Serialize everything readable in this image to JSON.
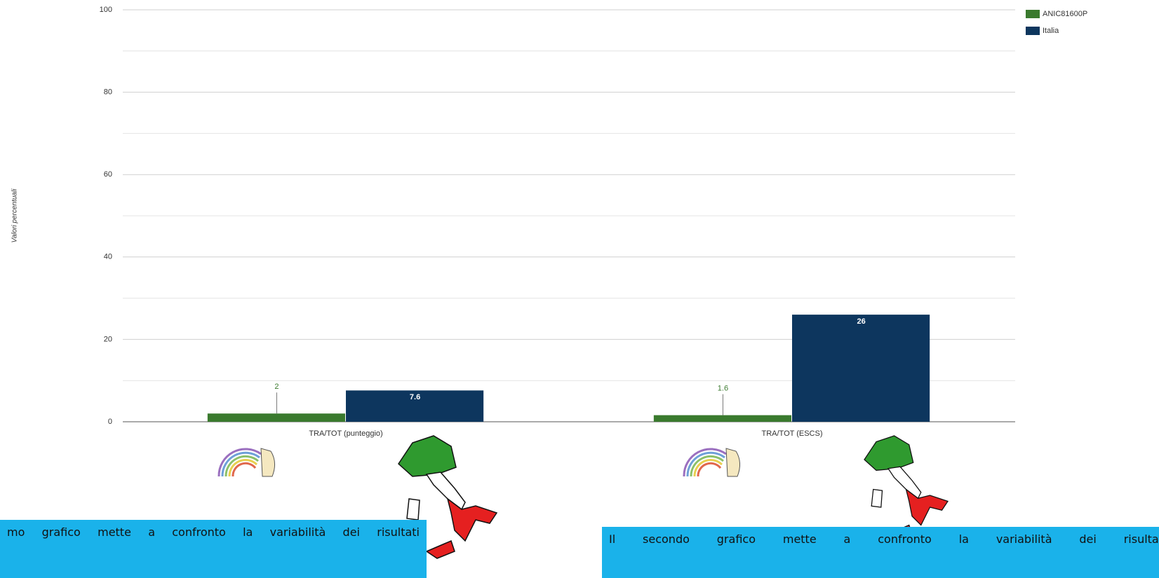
{
  "chart_data": {
    "type": "bar",
    "y_label": "Valori percentuali",
    "categories": [
      "TRA/TOT (punteggio)",
      "TRA/TOT (ESCS)"
    ],
    "series": [
      {
        "name": "ANIC81600P",
        "color": "#3a7a2e",
        "values": [
          2,
          1.6
        ]
      },
      {
        "name": "Italia",
        "color": "#0d365e",
        "values": [
          7.6,
          26
        ]
      }
    ],
    "ylim": [
      0,
      100
    ],
    "yticks": [
      0,
      20,
      40,
      60,
      80,
      100
    ],
    "grid": true,
    "legend": "top-right"
  },
  "text_boxes": {
    "left": "mo grafico mette a confronto la variabilità dei risultati",
    "right": "Il secondo grafico mette a confronto la variabilità dei risultat"
  }
}
